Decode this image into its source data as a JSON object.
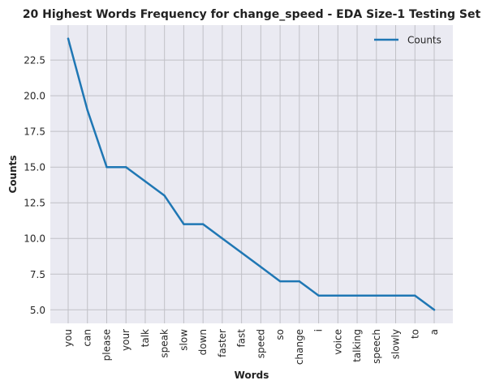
{
  "chart_data": {
    "type": "line",
    "title": "20 Highest Words Frequency for change_speed - EDA Size-1 Testing Set",
    "xlabel": "Words",
    "ylabel": "Counts",
    "categories": [
      "you",
      "can",
      "please",
      "your",
      "talk",
      "speak",
      "slow",
      "down",
      "faster",
      "fast",
      "speed",
      "so",
      "change",
      "i",
      "voice",
      "talking",
      "speech",
      "slowly",
      "to",
      "a"
    ],
    "series": [
      {
        "name": "Counts",
        "values": [
          24,
          19,
          15,
          15,
          14,
          13,
          11,
          11,
          10,
          9,
          8,
          7,
          7,
          6,
          6,
          6,
          6,
          6,
          6,
          5
        ],
        "color": "#1f77b4"
      }
    ],
    "yticks": [
      "5.0",
      "7.5",
      "10.0",
      "12.5",
      "15.0",
      "17.5",
      "20.0",
      "22.5"
    ],
    "ylim": [
      4.05,
      24.95
    ],
    "grid": true,
    "legend": "top-right",
    "plot_background": "#eaeaf2",
    "grid_color": "#c0c0c6"
  }
}
